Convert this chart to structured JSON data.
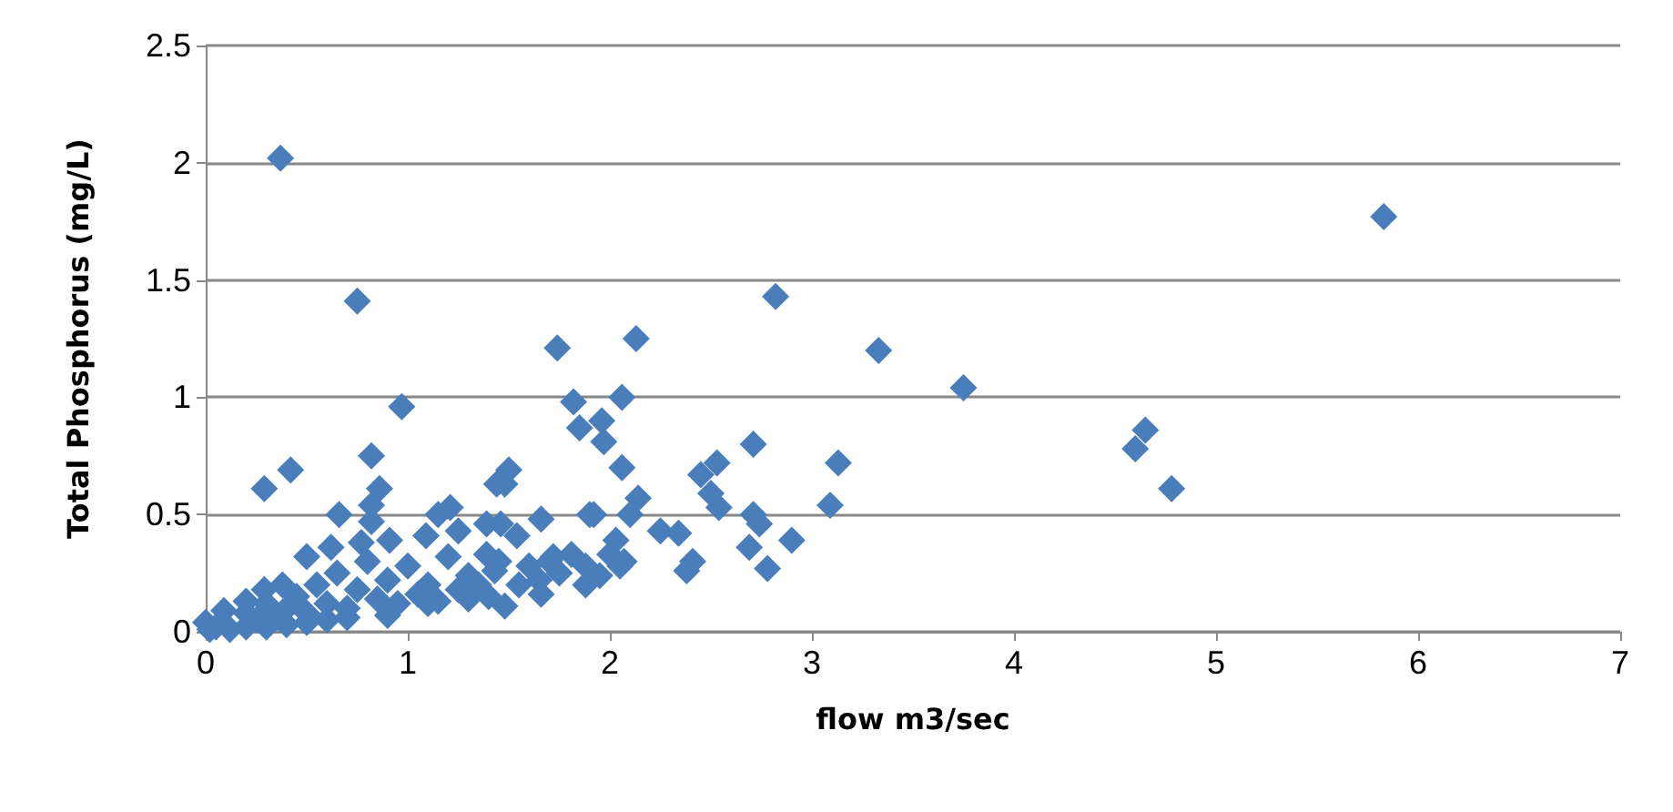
{
  "chart_data": {
    "type": "scatter",
    "xlabel": "flow m3/sec",
    "ylabel": "Total Phosphorus (mg/L)",
    "xlim": [
      0,
      7
    ],
    "xticks": [
      0,
      1,
      2,
      3,
      4,
      5,
      6,
      7
    ],
    "ylim": [
      0,
      2.5
    ],
    "yticks": [
      0,
      0.5,
      1,
      1.5,
      2,
      2.5
    ],
    "grid": "y",
    "marker": "diamond",
    "series": [
      {
        "color": "#4a7ebb",
        "x": [
          0.37,
          0.75,
          0.97,
          0.42,
          0.29,
          0.82,
          1.74,
          2.13,
          2.82,
          3.33,
          3.75,
          4.65,
          4.6,
          4.78,
          5.83,
          1.82,
          2.06,
          1.85,
          1.96,
          1.97,
          2.06,
          1.5,
          1.48,
          2.14,
          2.1,
          1.9,
          1.66,
          2.45,
          2.53,
          2.5,
          2.54,
          2.71,
          3.13,
          3.09,
          2.71,
          2.74,
          2.9,
          2.69,
          2.78,
          2.38,
          2.41,
          2.25,
          2.34,
          2.03,
          2.07,
          1.88,
          1.88,
          1.66,
          1.48,
          1.81,
          1.72,
          1.54,
          1.46,
          1.39,
          1.43,
          1.92,
          0.86,
          0.82,
          0.66,
          0.82,
          1.21,
          1.15,
          1.39,
          1.44,
          0.5,
          0.62,
          0.77,
          0.91,
          1.09,
          1.25,
          0.29,
          0.38,
          0.2,
          0.09,
          0.0,
          0.05,
          0.2,
          0.25,
          0.3,
          0.35,
          0.4,
          0.45,
          0.5,
          0.55,
          0.6,
          0.65,
          0.7,
          0.75,
          0.8,
          0.85,
          0.9,
          0.95,
          1.0,
          1.05,
          1.1,
          1.15,
          1.2,
          1.25,
          1.3,
          1.35,
          1.4,
          1.45,
          1.55,
          1.6,
          1.65,
          1.7,
          1.75,
          1.95,
          2.0,
          2.05,
          0.2,
          0.4,
          0.6,
          0.3,
          0.5,
          0.7,
          0.9,
          1.1,
          1.3,
          0.12,
          0.02
        ],
        "values": [
          2.02,
          1.41,
          0.96,
          0.69,
          0.61,
          0.75,
          1.21,
          1.25,
          1.43,
          1.2,
          1.04,
          0.86,
          0.78,
          0.61,
          1.77,
          0.98,
          1.0,
          0.87,
          0.9,
          0.81,
          0.7,
          0.69,
          0.63,
          0.57,
          0.5,
          0.5,
          0.48,
          0.67,
          0.72,
          0.59,
          0.53,
          0.8,
          0.72,
          0.54,
          0.5,
          0.46,
          0.39,
          0.36,
          0.27,
          0.26,
          0.3,
          0.43,
          0.42,
          0.39,
          0.3,
          0.2,
          0.28,
          0.16,
          0.11,
          0.33,
          0.32,
          0.41,
          0.46,
          0.33,
          0.26,
          0.5,
          0.61,
          0.54,
          0.5,
          0.47,
          0.53,
          0.5,
          0.46,
          0.63,
          0.32,
          0.36,
          0.38,
          0.39,
          0.41,
          0.43,
          0.18,
          0.2,
          0.13,
          0.09,
          0.04,
          0.02,
          0.08,
          0.05,
          0.12,
          0.06,
          0.1,
          0.15,
          0.08,
          0.2,
          0.12,
          0.25,
          0.1,
          0.18,
          0.3,
          0.14,
          0.22,
          0.12,
          0.28,
          0.16,
          0.2,
          0.13,
          0.32,
          0.18,
          0.24,
          0.2,
          0.15,
          0.3,
          0.2,
          0.28,
          0.22,
          0.3,
          0.25,
          0.24,
          0.33,
          0.28,
          0.02,
          0.03,
          0.05,
          0.02,
          0.04,
          0.06,
          0.07,
          0.12,
          0.14,
          0.01,
          0.01
        ]
      }
    ]
  }
}
